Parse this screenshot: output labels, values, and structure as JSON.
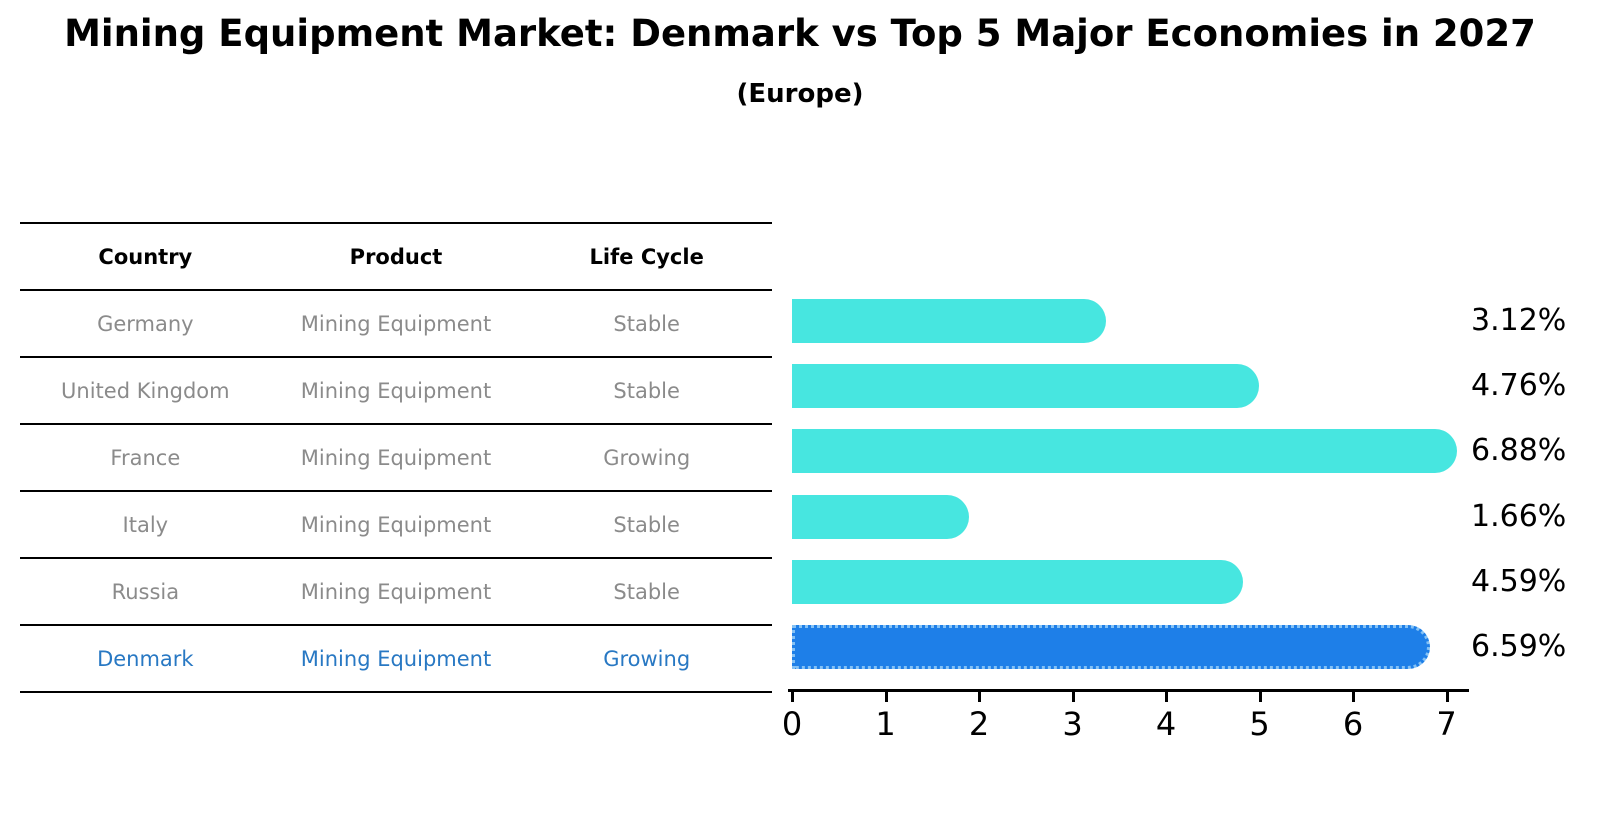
{
  "title": "Mining Equipment Market: Denmark vs Top 5 Major Economies in 2027",
  "subtitle": "(Europe)",
  "table": {
    "headers": [
      "Country",
      "Product",
      "Life Cycle"
    ],
    "rows": [
      {
        "country": "Germany",
        "product": "Mining Equipment",
        "life_cycle": "Stable",
        "highlighted": false
      },
      {
        "country": "United Kingdom",
        "product": "Mining Equipment",
        "life_cycle": "Stable",
        "highlighted": false
      },
      {
        "country": "France",
        "product": "Mining Equipment",
        "life_cycle": "Growing",
        "highlighted": false
      },
      {
        "country": "Italy",
        "product": "Mining Equipment",
        "life_cycle": "Stable",
        "highlighted": false
      },
      {
        "country": "Russia",
        "product": "Mining Equipment",
        "life_cycle": "Stable",
        "highlighted": false
      },
      {
        "country": "Denmark",
        "product": "Mining Equipment",
        "life_cycle": "Growing",
        "highlighted": true
      }
    ]
  },
  "chart_data": {
    "type": "bar",
    "orientation": "horizontal",
    "title": "Mining Equipment Market: Denmark vs Top 5 Major Economies in 2027 (Europe)",
    "categories": [
      "Germany",
      "United Kingdom",
      "France",
      "Italy",
      "Russia",
      "Denmark"
    ],
    "values": [
      3.12,
      4.76,
      6.88,
      1.66,
      4.59,
      6.59
    ],
    "value_labels": [
      "3.12%",
      "4.76%",
      "6.88%",
      "1.66%",
      "4.59%",
      "6.59%"
    ],
    "xlabel": "",
    "ylabel": "",
    "xlim": [
      0,
      7
    ],
    "x_ticks": [
      "0",
      "1",
      "2",
      "3",
      "4",
      "5",
      "6",
      "7"
    ],
    "grid": false,
    "legend": false,
    "bar_color": "#47E6E0",
    "highlight_index": 5,
    "highlight_color": "#1E7FE8",
    "highlight_border_color": "#85C2F5"
  },
  "colors": {
    "highlight_text": "#2878C3",
    "table_text": "#8B8B8B",
    "header_text": "#000000",
    "axis": "#000000"
  }
}
